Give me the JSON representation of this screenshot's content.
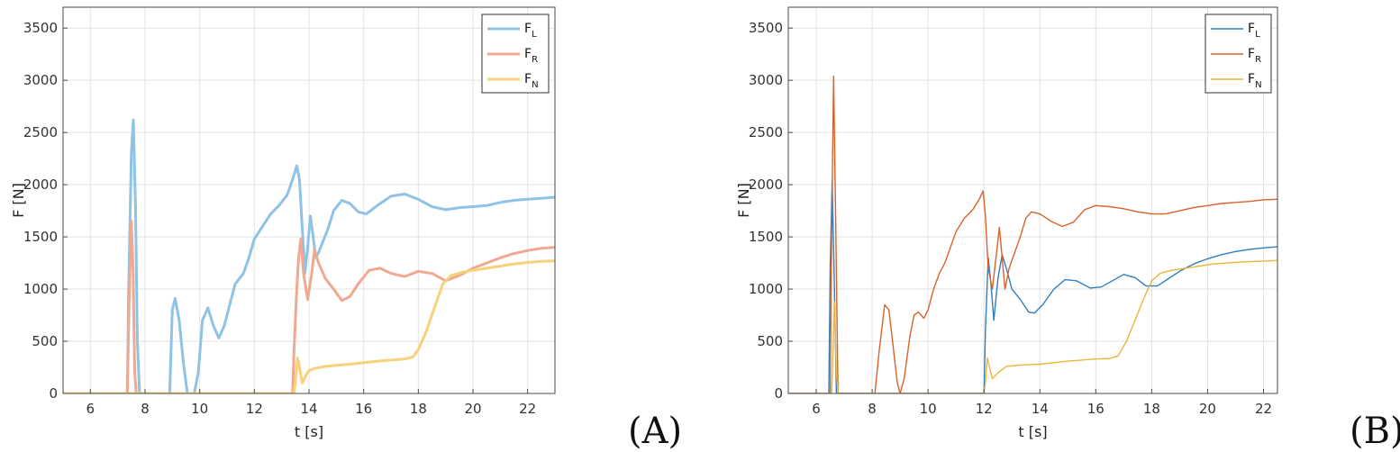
{
  "chart_data": [
    {
      "type": "line",
      "panel_label": "(A)",
      "xlabel": "t [s]",
      "ylabel": "F [N]",
      "xlim": [
        5,
        23
      ],
      "ylim": [
        0,
        3700
      ],
      "xticks": [
        6,
        8,
        10,
        12,
        14,
        16,
        18,
        20,
        22
      ],
      "yticks": [
        0,
        500,
        1000,
        1500,
        2000,
        2500,
        3000,
        3500
      ],
      "grid": true,
      "legend_position": "top-right",
      "line_width": 3,
      "series": [
        {
          "name": "F",
          "sub": "L",
          "color": "#8ec3e6",
          "points": [
            [
              5,
              0
            ],
            [
              7.35,
              0
            ],
            [
              7.4,
              1000
            ],
            [
              7.5,
              2300
            ],
            [
              7.57,
              2620
            ],
            [
              7.65,
              1800
            ],
            [
              7.72,
              500
            ],
            [
              7.8,
              0
            ],
            [
              8.9,
              0
            ],
            [
              9.0,
              800
            ],
            [
              9.1,
              910
            ],
            [
              9.25,
              700
            ],
            [
              9.4,
              300
            ],
            [
              9.55,
              0
            ],
            [
              9.8,
              0
            ],
            [
              9.95,
              200
            ],
            [
              10.1,
              700
            ],
            [
              10.3,
              820
            ],
            [
              10.5,
              650
            ],
            [
              10.7,
              530
            ],
            [
              10.9,
              650
            ],
            [
              11.1,
              850
            ],
            [
              11.3,
              1050
            ],
            [
              11.6,
              1150
            ],
            [
              11.8,
              1300
            ],
            [
              12.0,
              1480
            ],
            [
              12.3,
              1600
            ],
            [
              12.6,
              1720
            ],
            [
              12.9,
              1800
            ],
            [
              13.2,
              1900
            ],
            [
              13.4,
              2050
            ],
            [
              13.55,
              2180
            ],
            [
              13.65,
              2050
            ],
            [
              13.75,
              1600
            ],
            [
              13.85,
              1150
            ],
            [
              13.95,
              1400
            ],
            [
              14.05,
              1700
            ],
            [
              14.15,
              1500
            ],
            [
              14.25,
              1300
            ],
            [
              14.35,
              1350
            ],
            [
              14.5,
              1450
            ],
            [
              14.7,
              1580
            ],
            [
              14.9,
              1750
            ],
            [
              15.2,
              1850
            ],
            [
              15.5,
              1820
            ],
            [
              15.8,
              1740
            ],
            [
              16.1,
              1720
            ],
            [
              16.5,
              1800
            ],
            [
              17.0,
              1890
            ],
            [
              17.5,
              1910
            ],
            [
              18.0,
              1860
            ],
            [
              18.5,
              1790
            ],
            [
              19.0,
              1760
            ],
            [
              19.5,
              1780
            ],
            [
              20.0,
              1790
            ],
            [
              20.5,
              1800
            ],
            [
              21.0,
              1830
            ],
            [
              21.5,
              1850
            ],
            [
              22.0,
              1860
            ],
            [
              22.5,
              1870
            ],
            [
              23,
              1880
            ]
          ]
        },
        {
          "name": "F",
          "sub": "R",
          "color": "#f0a890",
          "points": [
            [
              5,
              0
            ],
            [
              7.35,
              0
            ],
            [
              7.42,
              900
            ],
            [
              7.5,
              1650
            ],
            [
              7.56,
              1200
            ],
            [
              7.62,
              200
            ],
            [
              7.68,
              0
            ],
            [
              13.4,
              0
            ],
            [
              13.45,
              400
            ],
            [
              13.55,
              1000
            ],
            [
              13.62,
              1300
            ],
            [
              13.7,
              1480
            ],
            [
              13.8,
              1150
            ],
            [
              13.95,
              900
            ],
            [
              14.1,
              1150
            ],
            [
              14.2,
              1380
            ],
            [
              14.35,
              1250
            ],
            [
              14.6,
              1100
            ],
            [
              14.9,
              1000
            ],
            [
              15.2,
              890
            ],
            [
              15.5,
              930
            ],
            [
              15.8,
              1050
            ],
            [
              16.2,
              1180
            ],
            [
              16.6,
              1200
            ],
            [
              17.0,
              1150
            ],
            [
              17.5,
              1120
            ],
            [
              18.0,
              1170
            ],
            [
              18.5,
              1150
            ],
            [
              19.0,
              1080
            ],
            [
              19.5,
              1130
            ],
            [
              20.0,
              1200
            ],
            [
              20.5,
              1250
            ],
            [
              21.0,
              1300
            ],
            [
              21.5,
              1340
            ],
            [
              22.0,
              1370
            ],
            [
              22.5,
              1390
            ],
            [
              23,
              1400
            ]
          ]
        },
        {
          "name": "F",
          "sub": "N",
          "color": "#f7d27a",
          "points": [
            [
              5,
              0
            ],
            [
              13.45,
              0
            ],
            [
              13.5,
              100
            ],
            [
              13.58,
              340
            ],
            [
              13.65,
              250
            ],
            [
              13.75,
              100
            ],
            [
              13.9,
              180
            ],
            [
              14.0,
              220
            ],
            [
              14.2,
              240
            ],
            [
              14.6,
              260
            ],
            [
              15.0,
              270
            ],
            [
              15.5,
              280
            ],
            [
              16.0,
              295
            ],
            [
              16.5,
              310
            ],
            [
              17.0,
              320
            ],
            [
              17.5,
              330
            ],
            [
              17.8,
              350
            ],
            [
              18.0,
              420
            ],
            [
              18.3,
              600
            ],
            [
              18.6,
              830
            ],
            [
              18.9,
              1050
            ],
            [
              19.2,
              1130
            ],
            [
              19.6,
              1160
            ],
            [
              20.0,
              1180
            ],
            [
              20.5,
              1200
            ],
            [
              21.0,
              1220
            ],
            [
              21.5,
              1240
            ],
            [
              22.0,
              1255
            ],
            [
              22.5,
              1265
            ],
            [
              23,
              1270
            ]
          ]
        }
      ]
    },
    {
      "type": "line",
      "panel_label": "(B)",
      "xlabel": "t [s]",
      "ylabel": "F [N]",
      "xlim": [
        5,
        22.5
      ],
      "ylim": [
        0,
        3700
      ],
      "xticks": [
        6,
        8,
        10,
        12,
        14,
        16,
        18,
        20,
        22
      ],
      "yticks": [
        0,
        500,
        1000,
        1500,
        2000,
        2500,
        3000,
        3500
      ],
      "grid": true,
      "legend_position": "top-right",
      "line_width": 1.4,
      "series": [
        {
          "name": "F",
          "sub": "L",
          "color": "#2f7fc0",
          "points": [
            [
              5,
              0
            ],
            [
              6.45,
              0
            ],
            [
              6.5,
              1200
            ],
            [
              6.57,
              2040
            ],
            [
              6.65,
              1000
            ],
            [
              6.72,
              0
            ],
            [
              12.0,
              0
            ],
            [
              12.05,
              600
            ],
            [
              12.15,
              1300
            ],
            [
              12.25,
              1050
            ],
            [
              12.35,
              700
            ],
            [
              12.5,
              1100
            ],
            [
              12.65,
              1330
            ],
            [
              12.8,
              1200
            ],
            [
              13.0,
              1000
            ],
            [
              13.3,
              900
            ],
            [
              13.6,
              780
            ],
            [
              13.8,
              770
            ],
            [
              14.1,
              850
            ],
            [
              14.5,
              1000
            ],
            [
              14.9,
              1090
            ],
            [
              15.3,
              1080
            ],
            [
              15.8,
              1010
            ],
            [
              16.2,
              1020
            ],
            [
              16.6,
              1080
            ],
            [
              17.0,
              1140
            ],
            [
              17.4,
              1110
            ],
            [
              17.8,
              1030
            ],
            [
              18.2,
              1030
            ],
            [
              18.6,
              1100
            ],
            [
              19.0,
              1170
            ],
            [
              19.5,
              1240
            ],
            [
              20.0,
              1290
            ],
            [
              20.5,
              1330
            ],
            [
              21.0,
              1360
            ],
            [
              21.5,
              1380
            ],
            [
              22.0,
              1395
            ],
            [
              22.5,
              1405
            ]
          ]
        },
        {
          "name": "F",
          "sub": "R",
          "color": "#d9622b",
          "points": [
            [
              5,
              0
            ],
            [
              6.5,
              0
            ],
            [
              6.55,
              1500
            ],
            [
              6.62,
              3040
            ],
            [
              6.7,
              1600
            ],
            [
              6.78,
              0
            ],
            [
              8.1,
              0
            ],
            [
              8.25,
              400
            ],
            [
              8.45,
              850
            ],
            [
              8.6,
              800
            ],
            [
              8.75,
              450
            ],
            [
              8.9,
              100
            ],
            [
              9.0,
              0
            ],
            [
              9.15,
              150
            ],
            [
              9.35,
              550
            ],
            [
              9.5,
              750
            ],
            [
              9.65,
              780
            ],
            [
              9.85,
              720
            ],
            [
              10.0,
              800
            ],
            [
              10.2,
              1000
            ],
            [
              10.4,
              1150
            ],
            [
              10.6,
              1250
            ],
            [
              10.8,
              1400
            ],
            [
              11.0,
              1550
            ],
            [
              11.3,
              1680
            ],
            [
              11.6,
              1760
            ],
            [
              11.85,
              1870
            ],
            [
              11.97,
              1940
            ],
            [
              12.05,
              1700
            ],
            [
              12.15,
              1200
            ],
            [
              12.3,
              1000
            ],
            [
              12.45,
              1350
            ],
            [
              12.55,
              1590
            ],
            [
              12.65,
              1300
            ],
            [
              12.75,
              1000
            ],
            [
              12.9,
              1200
            ],
            [
              13.1,
              1350
            ],
            [
              13.3,
              1500
            ],
            [
              13.5,
              1680
            ],
            [
              13.7,
              1740
            ],
            [
              14.0,
              1720
            ],
            [
              14.4,
              1650
            ],
            [
              14.8,
              1600
            ],
            [
              15.2,
              1640
            ],
            [
              15.6,
              1760
            ],
            [
              16.0,
              1800
            ],
            [
              16.5,
              1790
            ],
            [
              17.0,
              1770
            ],
            [
              17.5,
              1740
            ],
            [
              18.0,
              1720
            ],
            [
              18.5,
              1720
            ],
            [
              19.0,
              1750
            ],
            [
              19.5,
              1780
            ],
            [
              20.0,
              1800
            ],
            [
              20.5,
              1820
            ],
            [
              21.0,
              1830
            ],
            [
              21.5,
              1840
            ],
            [
              22.0,
              1855
            ],
            [
              22.5,
              1860
            ]
          ]
        },
        {
          "name": "F",
          "sub": "N",
          "color": "#ecb53c",
          "points": [
            [
              5,
              0
            ],
            [
              6.55,
              0
            ],
            [
              6.6,
              400
            ],
            [
              6.65,
              880
            ],
            [
              6.72,
              200
            ],
            [
              6.78,
              0
            ],
            [
              12.0,
              0
            ],
            [
              12.05,
              100
            ],
            [
              12.12,
              340
            ],
            [
              12.2,
              250
            ],
            [
              12.3,
              140
            ],
            [
              12.5,
              200
            ],
            [
              12.8,
              260
            ],
            [
              13.2,
              270
            ],
            [
              13.6,
              275
            ],
            [
              14.0,
              280
            ],
            [
              14.5,
              295
            ],
            [
              15.0,
              310
            ],
            [
              15.5,
              320
            ],
            [
              16.0,
              330
            ],
            [
              16.5,
              335
            ],
            [
              16.8,
              360
            ],
            [
              17.1,
              500
            ],
            [
              17.4,
              700
            ],
            [
              17.7,
              900
            ],
            [
              18.0,
              1080
            ],
            [
              18.3,
              1150
            ],
            [
              18.7,
              1180
            ],
            [
              19.2,
              1200
            ],
            [
              19.7,
              1220
            ],
            [
              20.2,
              1240
            ],
            [
              20.7,
              1250
            ],
            [
              21.2,
              1260
            ],
            [
              21.7,
              1265
            ],
            [
              22.2,
              1270
            ],
            [
              22.5,
              1275
            ]
          ]
        }
      ]
    }
  ]
}
